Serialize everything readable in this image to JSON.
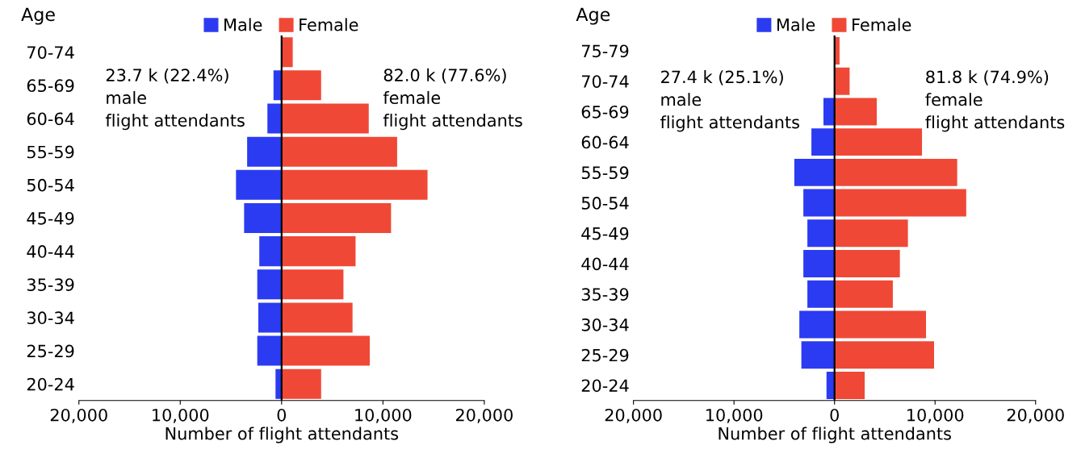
{
  "chart_data": [
    {
      "type": "bar",
      "orientation": "horizontal",
      "stacked": true,
      "ylabel": "Age",
      "xlabel": "Number of flight attendants",
      "legend": "top",
      "grid": false,
      "categories": [
        "70-74",
        "65-69",
        "60-64",
        "55-59",
        "50-54",
        "45-49",
        "40-44",
        "35-39",
        "30-34",
        "25-29",
        "20-24"
      ],
      "series": [
        {
          "name": "Male",
          "color": "#2b3bf2",
          "values": [
            0,
            -800,
            -1400,
            -3400,
            -4500,
            -3700,
            -2200,
            -2400,
            -2300,
            -2400,
            -600
          ]
        },
        {
          "name": "Female",
          "color": "#f04836",
          "values": [
            1100,
            3900,
            8600,
            11400,
            14400,
            10800,
            7300,
            6100,
            7000,
            8700,
            3900
          ]
        }
      ],
      "xlim": [
        -20000,
        20000
      ],
      "xticks": [
        {
          "value": -20000,
          "label": "20,000"
        },
        {
          "value": -10000,
          "label": "10,000"
        },
        0,
        {
          "value": 10000,
          "label": "10,000"
        },
        {
          "value": 20000,
          "label": "20,000"
        }
      ],
      "ref_lines": [
        {
          "axis": "x",
          "value": 0,
          "color": "#000000"
        }
      ],
      "annotations": [
        "23.7 k (22.4%)\nmale\nflight attendants",
        "82.0 k (77.6%)\nfemale\nflight attendants"
      ]
    },
    {
      "type": "bar",
      "orientation": "horizontal",
      "stacked": true,
      "ylabel": "Age",
      "xlabel": "Number of flight attendants",
      "legend": "top",
      "grid": false,
      "categories": [
        "75-79",
        "70-74",
        "65-69",
        "60-64",
        "55-59",
        "50-54",
        "45-49",
        "40-44",
        "35-39",
        "30-34",
        "25-29",
        "20-24"
      ],
      "series": [
        {
          "name": "Male",
          "color": "#2b3bf2",
          "values": [
            0,
            0,
            -1100,
            -2300,
            -4000,
            -3100,
            -2700,
            -3100,
            -2700,
            -3500,
            -3300,
            -800
          ]
        },
        {
          "name": "Female",
          "color": "#f04836",
          "values": [
            500,
            1500,
            4200,
            8700,
            12200,
            13100,
            7300,
            6500,
            5800,
            9100,
            9900,
            3000
          ]
        }
      ],
      "xlim": [
        -20000,
        20000
      ],
      "xticks": [
        {
          "value": -20000,
          "label": "20,000"
        },
        {
          "value": -10000,
          "label": "10,000"
        },
        0,
        {
          "value": 10000,
          "label": "10,000"
        },
        {
          "value": 20000,
          "label": "20,000"
        }
      ],
      "ref_lines": [
        {
          "axis": "x",
          "value": 0,
          "color": "#000000"
        }
      ],
      "annotations": [
        "27.4 k (25.1%)\nmale\nflight attendants",
        "81.8 k (74.9%)\nfemale\nflight attendants"
      ]
    }
  ]
}
